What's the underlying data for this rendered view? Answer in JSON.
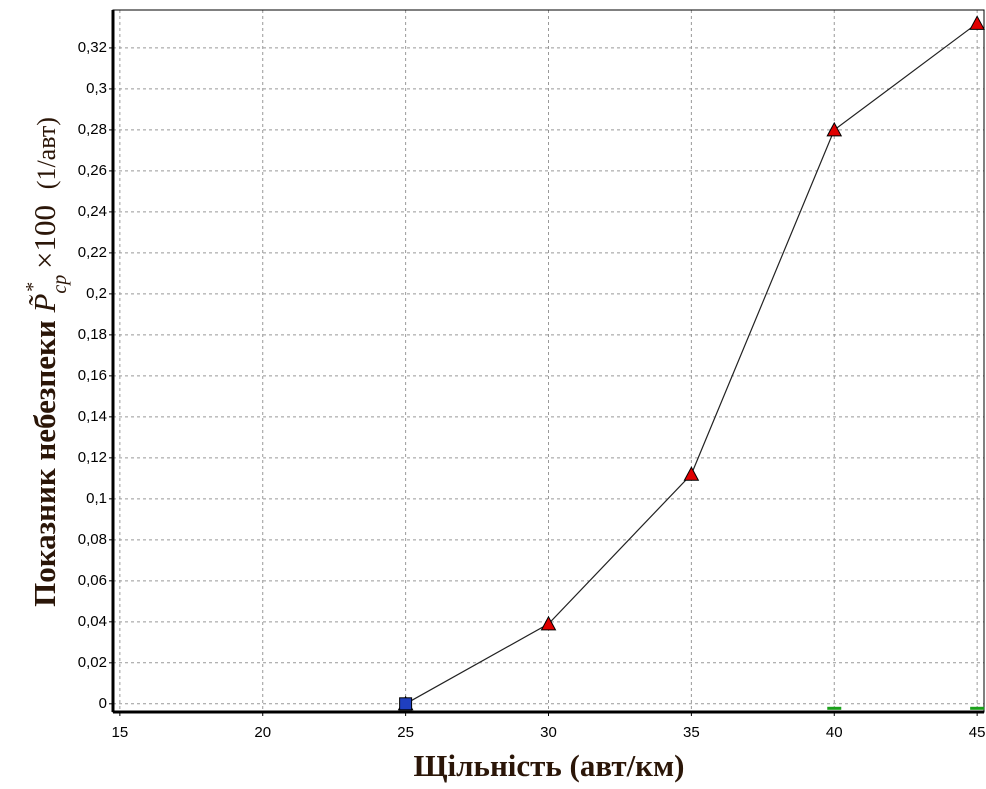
{
  "chart_data": {
    "type": "line",
    "xlabel": "Щільність  (авт/км)",
    "ylabel": {
      "text": "Показник небезпеки",
      "symbol": "P̃",
      "sub": "ср",
      "sup": "*",
      "factor": "×100",
      "unit": "(1/авт)"
    },
    "series": [
      {
        "x": [
          25,
          30,
          35,
          40,
          45
        ],
        "values": [
          0,
          0.039,
          0.112,
          0.28,
          0.332
        ],
        "color": "#e00000",
        "marker": "triangle",
        "line": true
      },
      {
        "x": [
          25
        ],
        "values": [
          0
        ],
        "color": "#1f3fbf",
        "marker": "square",
        "line": false
      },
      {
        "x": [
          40,
          45
        ],
        "values": [
          0,
          0
        ],
        "color": "#1aa01a",
        "marker": "dash",
        "line": false
      }
    ],
    "xlim": [
      14.76,
      45.24
    ],
    "ylim": [
      -0.004,
      0.3385
    ],
    "xticks": [
      15,
      20,
      25,
      30,
      35,
      40,
      45
    ],
    "yticks": [
      0,
      {
        "value": 0.02,
        "label": "0,02"
      },
      {
        "value": 0.04,
        "label": "0,04"
      },
      {
        "value": 0.06,
        "label": "0,06"
      },
      {
        "value": 0.08,
        "label": "0,08"
      },
      {
        "value": 0.1,
        "label": "0,1"
      },
      {
        "value": 0.12,
        "label": "0,12"
      },
      {
        "value": 0.14,
        "label": "0,14"
      },
      {
        "value": 0.16,
        "label": "0,16"
      },
      {
        "value": 0.18,
        "label": "0,18"
      },
      {
        "value": 0.2,
        "label": "0,2"
      },
      {
        "value": 0.22,
        "label": "0,22"
      },
      {
        "value": 0.24,
        "label": "0,24"
      },
      {
        "value": 0.26,
        "label": "0,26"
      },
      {
        "value": 0.28,
        "label": "0,28"
      },
      {
        "value": 0.3,
        "label": "0,3"
      },
      {
        "value": 0.32,
        "label": "0,32"
      }
    ],
    "grid": true
  }
}
